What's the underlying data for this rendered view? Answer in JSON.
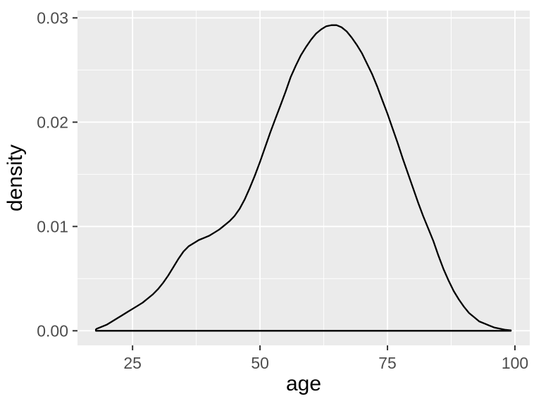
{
  "chart_data": {
    "type": "line",
    "subtype": "density",
    "title": "",
    "xlabel": "age",
    "ylabel": "density",
    "x_tick_labels": [
      "25",
      "50",
      "75",
      "100"
    ],
    "x_ticks": [
      25,
      50,
      75,
      100
    ],
    "x_minor_ticks": [
      37.5,
      62.5,
      87.5
    ],
    "y_tick_labels": [
      "0.00",
      "0.01",
      "0.02",
      "0.03"
    ],
    "y_ticks": [
      0.0,
      0.01,
      0.02,
      0.03
    ],
    "y_minor_ticks": [
      0.005,
      0.015,
      0.025
    ],
    "xlim": [
      14.2,
      102.9
    ],
    "ylim": [
      -0.0014,
      0.0307
    ],
    "grid": "major+minor",
    "legend": "none",
    "series": [
      {
        "name": "density of age",
        "x": [
          17.8,
          18,
          19,
          20,
          21,
          22,
          23,
          24,
          25,
          26,
          27,
          28,
          29,
          30,
          31,
          32,
          33,
          34,
          35,
          36,
          37,
          38,
          39,
          40,
          41,
          42,
          43,
          44,
          45,
          46,
          47,
          48,
          49,
          50,
          51,
          52,
          53,
          54,
          55,
          56,
          57,
          58,
          59,
          60,
          61,
          62,
          63,
          64,
          65,
          66,
          67,
          68,
          69,
          70,
          71,
          72,
          73,
          74,
          75,
          76,
          77,
          78,
          79,
          80,
          81,
          82,
          83,
          84,
          85,
          86,
          87,
          88,
          89,
          90,
          91,
          92,
          93,
          94,
          95,
          96,
          97,
          98,
          99,
          99.2
        ],
        "y": [
          0.00012,
          0.0002,
          0.0004,
          0.0006,
          0.0009,
          0.0012,
          0.0015,
          0.0018,
          0.0021,
          0.0024,
          0.0027,
          0.0031,
          0.0035,
          0.004,
          0.0046,
          0.0053,
          0.0061,
          0.0069,
          0.0076,
          0.0081,
          0.0084,
          0.0087,
          0.0089,
          0.0091,
          0.0094,
          0.0097,
          0.0101,
          0.0105,
          0.011,
          0.0117,
          0.0126,
          0.0137,
          0.0149,
          0.0162,
          0.0176,
          0.019,
          0.0203,
          0.0216,
          0.0229,
          0.0243,
          0.0254,
          0.0264,
          0.0272,
          0.0279,
          0.0285,
          0.0289,
          0.0292,
          0.0293,
          0.0293,
          0.0291,
          0.0287,
          0.0281,
          0.0274,
          0.0266,
          0.0256,
          0.0246,
          0.0234,
          0.0221,
          0.0208,
          0.0194,
          0.018,
          0.0165,
          0.0151,
          0.0137,
          0.0123,
          0.011,
          0.0098,
          0.0086,
          0.0072,
          0.0059,
          0.0048,
          0.0038,
          0.003,
          0.0023,
          0.0017,
          0.0013,
          0.0009,
          0.0007,
          0.0005,
          0.0003,
          0.0002,
          0.0001,
          5e-05,
          4e-05
        ]
      }
    ]
  },
  "colors": {
    "background": "#FFFFFF",
    "panel": "#EBEBEB",
    "grid_major": "#FFFFFF",
    "grid_minor": "#FFFFFF",
    "curve": "#000000",
    "tick_mark": "#333333",
    "tick_label": "#4D4D4D",
    "axis_title": "#000000"
  }
}
